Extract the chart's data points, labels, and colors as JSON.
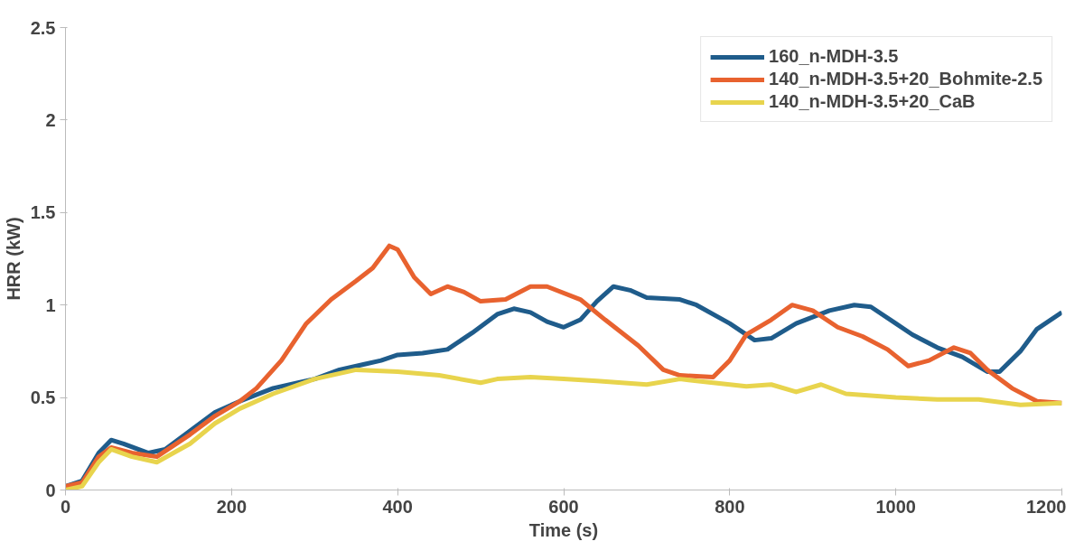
{
  "chart_data": {
    "type": "line",
    "xlabel": "Time (s)",
    "ylabel": "HRR (kW)",
    "xlim": [
      0,
      1200
    ],
    "xticks": [
      0,
      200,
      400,
      600,
      800,
      1000,
      1200
    ],
    "ylim": [
      0,
      2.5
    ],
    "yticks": [
      0,
      0.5,
      1,
      1.5,
      2,
      2.5
    ],
    "grid": false,
    "legend": "top right",
    "marker": "none",
    "line_style": "solid",
    "series": [
      {
        "name": "160_n-MDH-3.5",
        "color": "#1f5c8b",
        "x": [
          0,
          20,
          40,
          55,
          70,
          100,
          120,
          150,
          180,
          210,
          250,
          280,
          300,
          330,
          360,
          380,
          400,
          430,
          460,
          490,
          520,
          540,
          560,
          580,
          600,
          620,
          640,
          660,
          680,
          700,
          740,
          760,
          800,
          830,
          850,
          880,
          920,
          950,
          970,
          1000,
          1020,
          1050,
          1080,
          1110,
          1125,
          1150,
          1170,
          1200
        ],
        "values": [
          0.02,
          0.05,
          0.2,
          0.27,
          0.25,
          0.2,
          0.22,
          0.32,
          0.42,
          0.48,
          0.55,
          0.58,
          0.6,
          0.65,
          0.68,
          0.7,
          0.73,
          0.74,
          0.76,
          0.85,
          0.95,
          0.98,
          0.96,
          0.91,
          0.88,
          0.92,
          1.02,
          1.1,
          1.08,
          1.04,
          1.03,
          1.0,
          0.9,
          0.81,
          0.82,
          0.9,
          0.97,
          1.0,
          0.99,
          0.9,
          0.84,
          0.77,
          0.72,
          0.64,
          0.64,
          0.75,
          0.87,
          0.96
        ]
      },
      {
        "name": "140_n-MDH-3.5+20_Bohmite-2.5",
        "color": "#e8622f",
        "x": [
          0,
          20,
          40,
          55,
          80,
          110,
          150,
          180,
          210,
          230,
          260,
          290,
          320,
          350,
          370,
          390,
          400,
          420,
          440,
          460,
          480,
          500,
          530,
          560,
          580,
          620,
          650,
          690,
          720,
          740,
          780,
          800,
          820,
          850,
          875,
          900,
          930,
          960,
          990,
          1015,
          1040,
          1070,
          1090,
          1110,
          1140,
          1170,
          1200
        ],
        "values": [
          0.02,
          0.04,
          0.18,
          0.23,
          0.2,
          0.18,
          0.3,
          0.4,
          0.48,
          0.55,
          0.7,
          0.9,
          1.03,
          1.13,
          1.2,
          1.32,
          1.3,
          1.15,
          1.06,
          1.1,
          1.07,
          1.02,
          1.03,
          1.1,
          1.1,
          1.03,
          0.92,
          0.78,
          0.65,
          0.62,
          0.61,
          0.7,
          0.84,
          0.92,
          1.0,
          0.97,
          0.88,
          0.83,
          0.76,
          0.67,
          0.7,
          0.77,
          0.74,
          0.65,
          0.55,
          0.48,
          0.47
        ]
      },
      {
        "name": "140_n-MDH-3.5+20_CaB",
        "color": "#e8d44d",
        "x": [
          0,
          20,
          40,
          55,
          80,
          110,
          150,
          180,
          210,
          250,
          300,
          350,
          400,
          450,
          500,
          520,
          560,
          600,
          640,
          700,
          740,
          780,
          820,
          850,
          880,
          910,
          940,
          1000,
          1050,
          1100,
          1150,
          1200
        ],
        "values": [
          0.0,
          0.02,
          0.15,
          0.22,
          0.18,
          0.15,
          0.25,
          0.36,
          0.44,
          0.52,
          0.6,
          0.65,
          0.64,
          0.62,
          0.58,
          0.6,
          0.61,
          0.6,
          0.59,
          0.57,
          0.6,
          0.58,
          0.56,
          0.57,
          0.53,
          0.57,
          0.52,
          0.5,
          0.49,
          0.49,
          0.46,
          0.47
        ]
      }
    ]
  }
}
